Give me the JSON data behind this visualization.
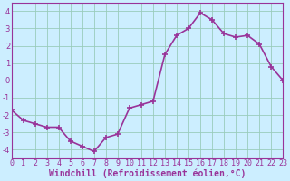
{
  "x": [
    0,
    1,
    2,
    3,
    4,
    5,
    6,
    7,
    8,
    9,
    10,
    11,
    12,
    13,
    14,
    15,
    16,
    17,
    18,
    19,
    20,
    21,
    22,
    23
  ],
  "y": [
    -1.7,
    -2.3,
    -2.5,
    -2.7,
    -2.7,
    -3.5,
    -3.8,
    -4.1,
    -3.3,
    -3.1,
    -1.6,
    -1.4,
    -1.2,
    1.5,
    2.6,
    3.0,
    3.9,
    3.5,
    2.7,
    2.5,
    2.6,
    2.1,
    0.8,
    0.0
  ],
  "line_color": "#993399",
  "marker": "+",
  "marker_size": 4,
  "marker_lw": 1.2,
  "bg_color": "#cceeff",
  "grid_color": "#99ccbb",
  "xlabel": "Windchill (Refroidissement éolien,°C)",
  "xlim": [
    0,
    23
  ],
  "ylim": [
    -4.5,
    4.5
  ],
  "yticks": [
    -4,
    -3,
    -2,
    -1,
    0,
    1,
    2,
    3,
    4
  ],
  "xticks": [
    0,
    1,
    2,
    3,
    4,
    5,
    6,
    7,
    8,
    9,
    10,
    11,
    12,
    13,
    14,
    15,
    16,
    17,
    18,
    19,
    20,
    21,
    22,
    23
  ],
  "tick_label_fontsize": 6,
  "xlabel_fontsize": 7,
  "linewidth": 1.2
}
